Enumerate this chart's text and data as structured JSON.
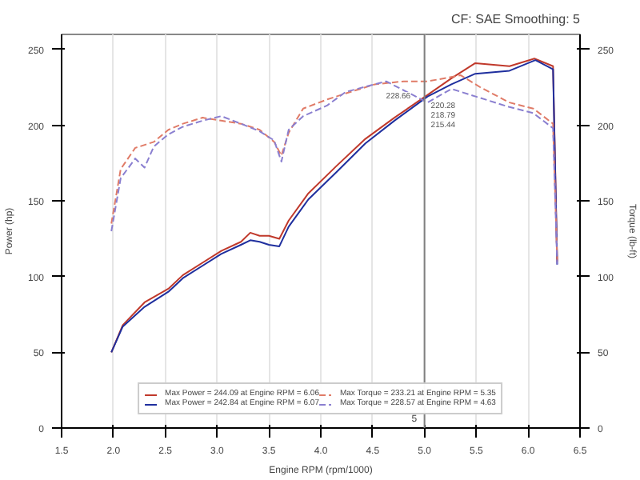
{
  "chart_data": {
    "type": "line",
    "subtitle": "CF: SAE Smoothing: 5",
    "xlabel": "Engine RPM (rpm/1000)",
    "ylabel": "Power (hp)",
    "y2label": "Torque (lb-ft)",
    "xlim": [
      1.5,
      6.5
    ],
    "xticks": [
      {
        "value": 1.5,
        "label": "1.5"
      },
      {
        "value": 2,
        "label": "2.0"
      },
      {
        "value": 2.5,
        "label": "2.5"
      },
      {
        "value": 3,
        "label": "3.0"
      },
      {
        "value": 3.5,
        "label": "3.5"
      },
      {
        "value": 4,
        "label": "4.0"
      },
      {
        "value": 4.5,
        "label": "4.5"
      },
      {
        "value": 5,
        "label": "5.0"
      },
      {
        "value": 5.5,
        "label": "5.5"
      },
      {
        "value": 6,
        "label": "6.0"
      },
      {
        "value": 6.5,
        "label": "6.5"
      }
    ],
    "ylim": [
      0,
      260
    ],
    "yticks": [
      0,
      50,
      100,
      150,
      200,
      250
    ],
    "y2lim": [
      0,
      260
    ],
    "y2ticks": [
      0,
      50,
      100,
      150,
      200,
      250
    ],
    "grid": "x",
    "legend": "bottom",
    "line_style": "solid",
    "series": [
      {
        "name": "Max Power = 244.09 at Engine RPM = 6.06",
        "color": "#c0392b",
        "x": [
          1.98,
          2.09,
          2.3,
          2.53,
          2.67,
          3.04,
          3.23,
          3.32,
          3.41,
          3.5,
          3.6,
          3.69,
          3.88,
          4.15,
          4.43,
          4.71,
          5.03,
          5.26,
          5.49,
          5.82,
          6.06,
          6.24,
          6.28
        ],
        "values": [
          50,
          68,
          83,
          92,
          101,
          117,
          123,
          129,
          127,
          127,
          125,
          137,
          155,
          173,
          191,
          205,
          220,
          231,
          241,
          239,
          244,
          239,
          110
        ]
      },
      {
        "name": "Max Power = 242.84 at Engine RPM = 6.07",
        "color": "#1f2f9e",
        "x": [
          1.98,
          2.09,
          2.3,
          2.53,
          2.67,
          3.04,
          3.23,
          3.32,
          3.41,
          3.5,
          3.6,
          3.69,
          3.88,
          4.15,
          4.43,
          4.71,
          5.03,
          5.26,
          5.49,
          5.82,
          6.07,
          6.24,
          6.28
        ],
        "values": [
          50,
          67,
          80,
          90,
          99,
          115,
          121,
          124,
          123,
          121,
          120,
          133,
          151,
          169,
          188,
          203,
          219,
          227,
          234,
          236,
          243,
          237,
          108
        ]
      },
      {
        "name": "Max Torque = 233.21 at Engine RPM = 5.35",
        "color": "#e07b67",
        "line_style": "dashed",
        "x": [
          1.98,
          2.07,
          2.21,
          2.39,
          2.53,
          2.67,
          2.86,
          3.04,
          3.23,
          3.41,
          3.55,
          3.62,
          3.69,
          3.83,
          4.06,
          4.24,
          4.52,
          4.8,
          5.03,
          5.35,
          5.54,
          5.82,
          6.05,
          6.24,
          6.28
        ],
        "values": [
          135,
          171,
          185,
          189,
          197,
          201,
          205,
          203,
          201,
          197,
          189,
          180,
          195,
          211,
          217,
          221,
          227,
          229,
          229,
          233,
          225,
          215,
          211,
          201,
          110
        ]
      },
      {
        "name": "Max Torque = 228.57 at Engine RPM = 4.63",
        "color": "#8a7fd0",
        "line_style": "dashed",
        "x": [
          1.98,
          2.07,
          2.21,
          2.3,
          2.39,
          2.53,
          2.67,
          2.86,
          3.04,
          3.23,
          3.41,
          3.55,
          3.62,
          3.69,
          3.83,
          4.06,
          4.24,
          4.63,
          5.03,
          5.26,
          5.54,
          5.82,
          6.05,
          6.24,
          6.28
        ],
        "values": [
          130,
          165,
          178,
          172,
          186,
          194,
          199,
          203,
          206,
          201,
          196,
          190,
          176,
          197,
          206,
          213,
          222,
          229,
          215,
          224,
          218,
          212,
          208,
          198,
          108
        ]
      }
    ],
    "annotations": [
      "228.66",
      "220.28",
      "218.79",
      "215.44"
    ],
    "ref_lines": [
      {
        "axis": "x",
        "value": 5,
        "label": "5",
        "color": "#808080"
      }
    ]
  }
}
